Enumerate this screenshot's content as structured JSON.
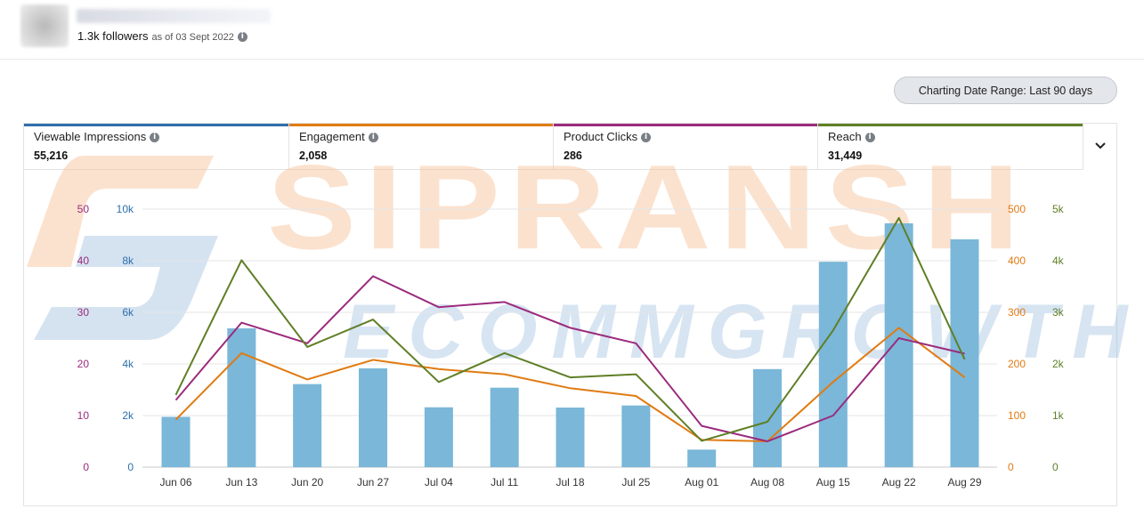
{
  "header": {
    "followers": "1.3k followers",
    "as_of": "as of 03 Sept 2022"
  },
  "range_button": "Charting Date Range: Last 90 days",
  "metrics": [
    {
      "label": "Viewable Impressions",
      "value": "55,216",
      "color": "#2f6eaa"
    },
    {
      "label": "Engagement",
      "value": "2,058",
      "color": "#e07b12"
    },
    {
      "label": "Product Clicks",
      "value": "286",
      "color": "#9b2b7d"
    },
    {
      "label": "Reach",
      "value": "31,449",
      "color": "#5f7f26"
    }
  ],
  "watermark": {
    "main": "SIPRANSH",
    "sub": "ECOMMGROWTH"
  },
  "chart_data": {
    "type": "bar",
    "categories": [
      "Jun 06",
      "Jun 13",
      "Jun 20",
      "Jun 27",
      "Jul 04",
      "Jul 11",
      "Jul 18",
      "Jul 25",
      "Aug 01",
      "Aug 08",
      "Aug 15",
      "Aug 22",
      "Aug 29"
    ],
    "axes": {
      "impressions": {
        "ticks": [
          "0",
          "2k",
          "4k",
          "6k",
          "8k",
          "10k"
        ],
        "ylim": [
          0,
          10000
        ],
        "color": "#2f6eaa"
      },
      "product_clicks": {
        "ticks": [
          "0",
          "10",
          "20",
          "30",
          "40",
          "50"
        ],
        "ylim": [
          0,
          50
        ],
        "color": "#9b2b7d"
      },
      "engagement": {
        "ticks": [
          "0",
          "100",
          "200",
          "300",
          "400",
          "500"
        ],
        "ylim": [
          0,
          500
        ],
        "color": "#e07b12"
      },
      "reach": {
        "ticks": [
          "0",
          "1k",
          "2k",
          "3k",
          "4k",
          "5k"
        ],
        "ylim": [
          0,
          5000
        ],
        "color": "#5f7f26"
      }
    },
    "series": [
      {
        "name": "Viewable Impressions",
        "type": "bar",
        "axis": "impressions",
        "color": "#7ab7d8",
        "values": [
          1950,
          5380,
          3220,
          3830,
          2320,
          3080,
          2310,
          2390,
          680,
          3800,
          7960,
          9450,
          8830
        ]
      },
      {
        "name": "Engagement",
        "type": "line",
        "axis": "engagement",
        "color": "#e07b12",
        "values": [
          92,
          221,
          170,
          208,
          190,
          180,
          153,
          138,
          53,
          50,
          165,
          270,
          174
        ]
      },
      {
        "name": "Product Clicks",
        "type": "line",
        "axis": "product_clicks",
        "color": "#9b2b7d",
        "values": [
          13,
          28,
          24,
          37,
          31,
          32,
          27,
          24,
          8,
          5,
          10,
          25,
          22
        ]
      },
      {
        "name": "Reach",
        "type": "line",
        "axis": "reach",
        "color": "#5f7f26",
        "values": [
          1400,
          4010,
          2330,
          2860,
          1650,
          2210,
          1740,
          1800,
          510,
          880,
          2650,
          4830,
          2090
        ]
      }
    ],
    "grid": true
  }
}
